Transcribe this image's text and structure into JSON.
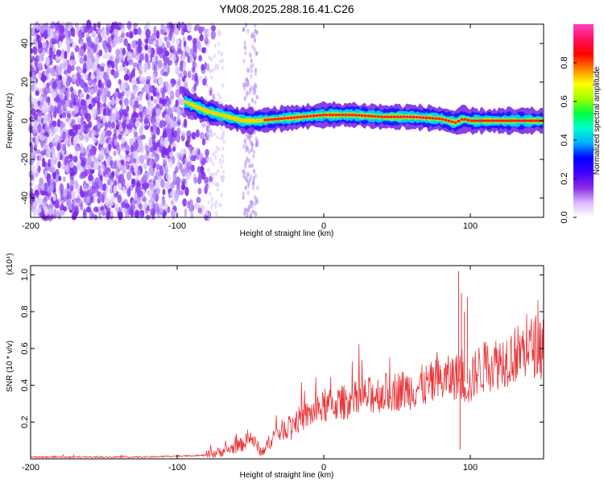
{
  "title": "YM08.2025.288.16.41.C26",
  "chart_data": [
    {
      "type": "heatmap",
      "name": "spectrogram",
      "xlabel": "Height of straight line (km)",
      "ylabel": "Frequency (Hz)",
      "xlim": [
        -200,
        150
      ],
      "ylim": [
        -50,
        50
      ],
      "xticks": [
        -200,
        -100,
        0,
        100
      ],
      "xtick_labels": [
        "-200",
        "-100",
        "0",
        "100"
      ],
      "yticks": [
        -40,
        -20,
        0,
        20,
        40
      ],
      "ytick_labels": [
        "-40",
        "-20",
        "0",
        "20",
        "40"
      ],
      "ridge": {
        "x": [
          -95,
          -80,
          -65,
          -55,
          -45,
          -30,
          -15,
          0,
          20,
          40,
          60,
          80,
          90,
          95,
          100,
          120,
          150
        ],
        "freq": [
          10,
          5,
          2,
          0,
          0,
          1,
          2,
          3,
          3,
          2,
          2,
          1,
          -1,
          1,
          0,
          0,
          0
        ]
      },
      "colorbar": {
        "label": "Normalized spectral amplitude",
        "range": [
          0,
          1
        ],
        "ticks": [
          0.0,
          0.2,
          0.4,
          0.6,
          0.8
        ],
        "tick_labels": [
          "0.0",
          "0.2",
          "0.4",
          "0.6",
          "0.8"
        ],
        "colors": [
          "#ffffff",
          "#d8b8ff",
          "#8a2be2",
          "#4000ff",
          "#0000ff",
          "#00b0ff",
          "#00ffd0",
          "#00ff40",
          "#a0ff00",
          "#ffff00",
          "#ff8000",
          "#ff0000",
          "#ff1060",
          "#ff40c0"
        ]
      }
    },
    {
      "type": "line",
      "name": "snr",
      "xlabel": "Height of straight line (km)",
      "ylabel": "SNR (10 * v/v)",
      "scale_note": "(x10⁴)",
      "color": "#e8363a",
      "xlim": [
        -200,
        150
      ],
      "ylim": [
        0,
        1.05
      ],
      "xticks": [
        -200,
        -100,
        0,
        100
      ],
      "xtick_labels": [
        "-200",
        "-100",
        "0",
        "100"
      ],
      "yticks": [
        0.2,
        0.4,
        0.6,
        0.8,
        1.0
      ],
      "ytick_labels": [
        "0.2",
        "0.4",
        "0.6",
        "0.8",
        "1.0"
      ],
      "trend": {
        "x": [
          -200,
          -120,
          -80,
          -65,
          -55,
          -50,
          -42,
          -35,
          -20,
          0,
          20,
          40,
          60,
          80,
          90,
          100,
          104,
          120,
          140,
          150
        ],
        "y": [
          0.01,
          0.01,
          0.02,
          0.05,
          0.08,
          0.12,
          0.03,
          0.12,
          0.2,
          0.28,
          0.32,
          0.36,
          0.38,
          0.42,
          0.45,
          0.4,
          0.48,
          0.53,
          0.6,
          0.64
        ]
      },
      "spikes": [
        {
          "x": 92,
          "y": 1.02
        },
        {
          "x": 94,
          "y": 0.9
        },
        {
          "x": 96,
          "y": 0.8
        },
        {
          "x": 98,
          "y": 0.88
        },
        {
          "x": 93,
          "y": 0.05
        }
      ]
    }
  ]
}
